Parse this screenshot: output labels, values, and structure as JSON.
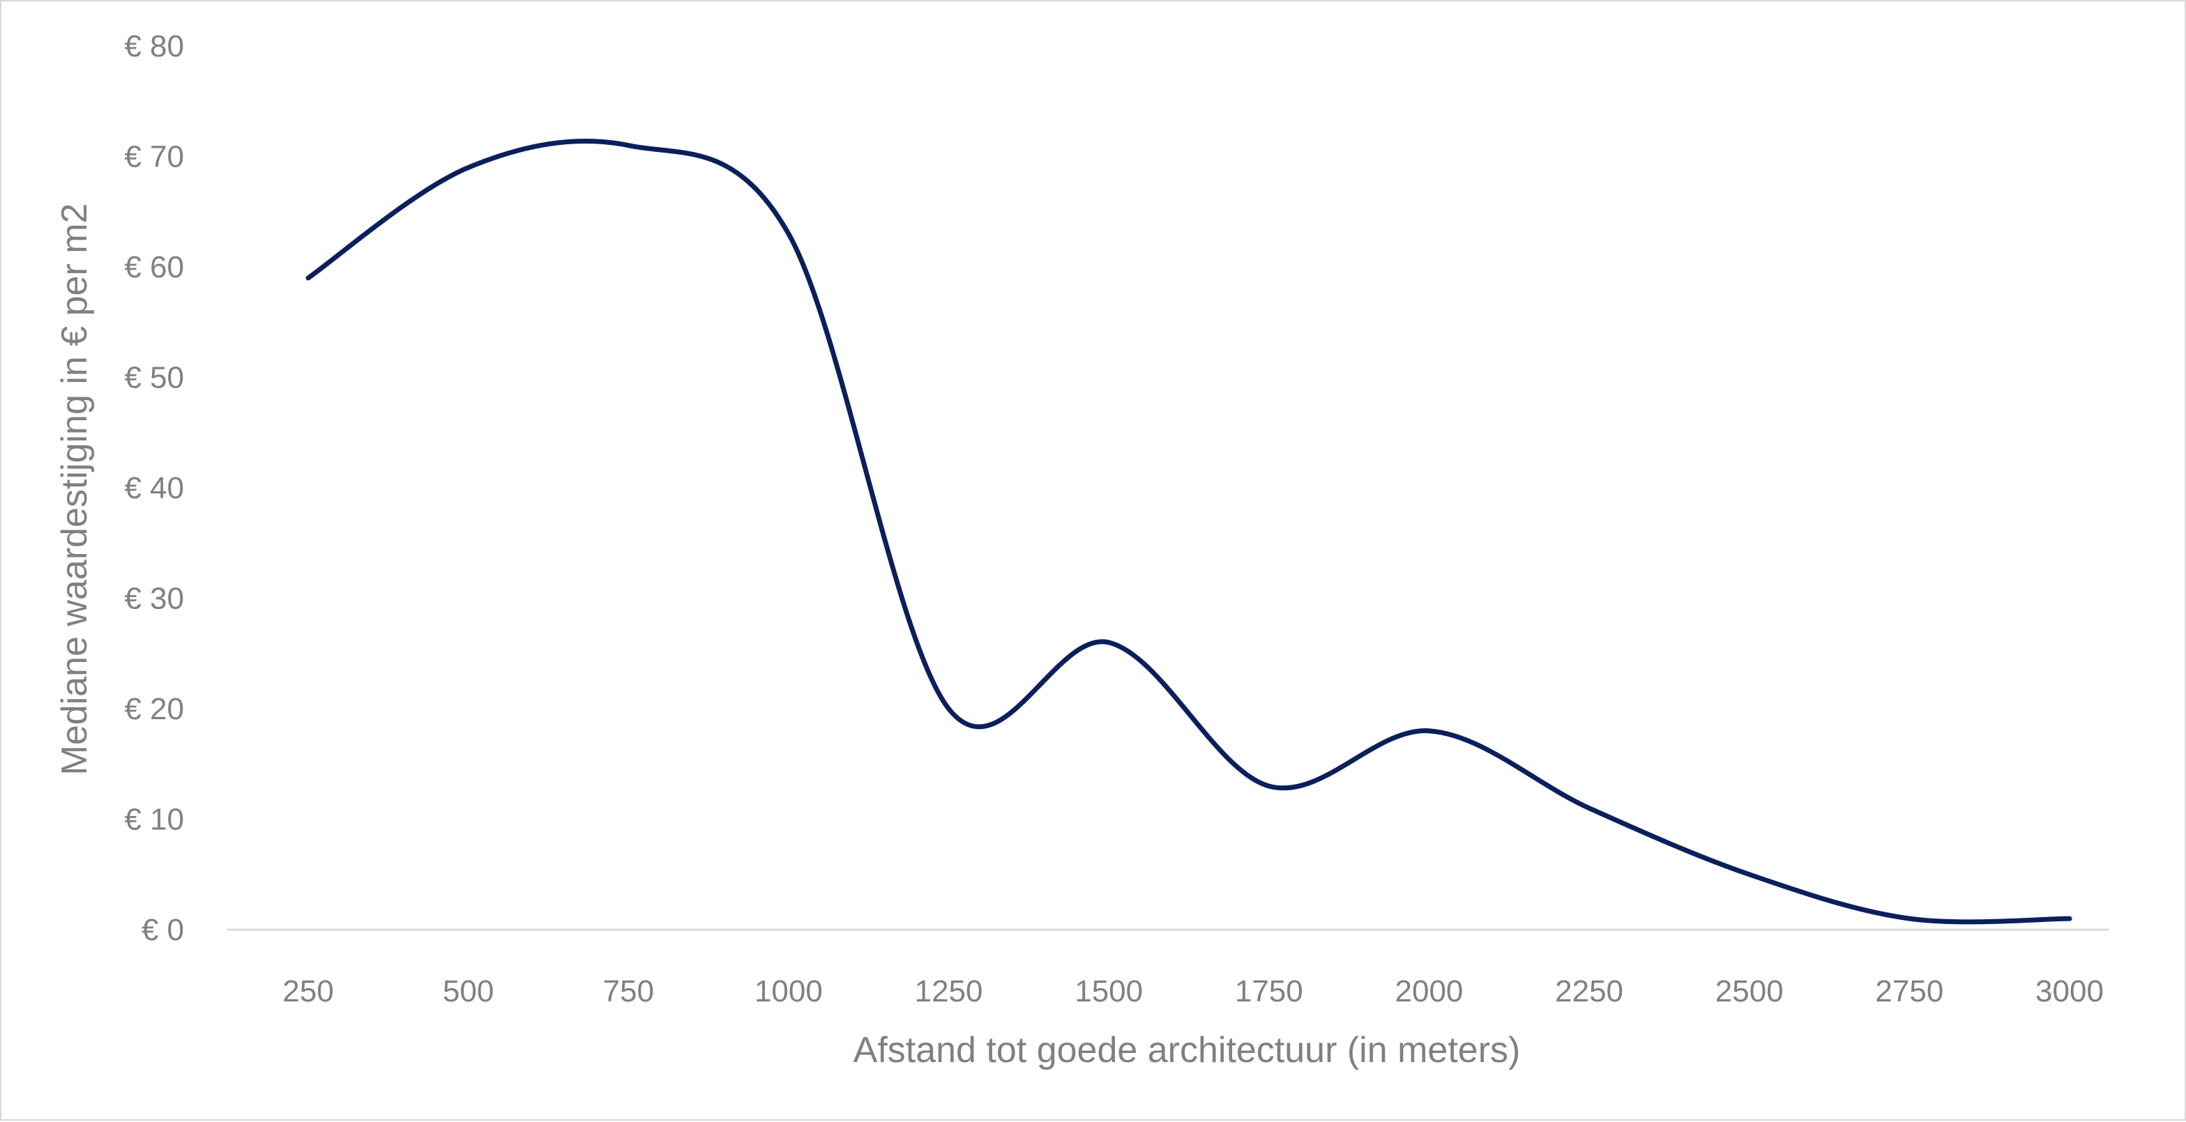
{
  "chart_data": {
    "type": "line",
    "smooth": true,
    "title": "",
    "xlabel": "Afstand tot goede architectuur (in meters)",
    "ylabel": "Mediane waardestijging in € per m2",
    "categories": [
      "250",
      "500",
      "750",
      "1000",
      "1250",
      "1500",
      "1750",
      "2000",
      "2250",
      "2500",
      "2750",
      "3000"
    ],
    "series": [
      {
        "values": [
          59,
          69,
          71,
          63,
          20,
          26,
          13,
          18,
          11,
          5,
          1,
          1
        ],
        "color": "#0b1f5c"
      }
    ],
    "ylim": [
      0,
      80
    ],
    "y_ticks": [
      0,
      10,
      20,
      30,
      40,
      50,
      60,
      70,
      80
    ],
    "y_tick_labels": [
      "€ 0",
      "€ 10",
      "€ 20",
      "€ 30",
      "€ 40",
      "€ 50",
      "€ 60",
      "€ 70",
      "€ 80"
    ],
    "grid": false,
    "legend": "none"
  }
}
